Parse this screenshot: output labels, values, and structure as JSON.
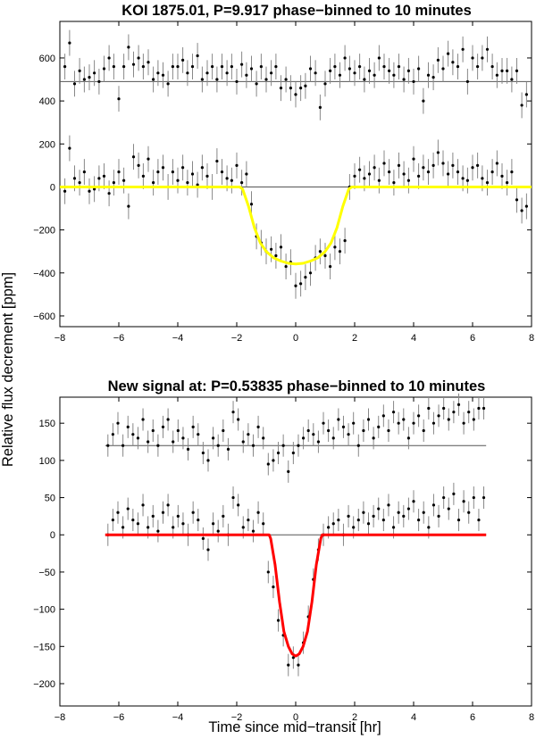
{
  "figure": {
    "ylabel": "Relative flux decrement [ppm]",
    "xlabel": "Time since mid−transit [hr]"
  },
  "chart_data": [
    {
      "type": "scatter",
      "title": "KOI 1875.01, P=9.917 phase−binned to 10 minutes",
      "xlabel": "",
      "ylabel": "",
      "xlim": [
        -8,
        8
      ],
      "ylim": [
        -650,
        770
      ],
      "xticks": [
        -8,
        -6,
        -4,
        -2,
        0,
        2,
        4,
        6,
        8
      ],
      "yticks": [
        -600,
        -400,
        -200,
        0,
        200,
        400,
        600
      ],
      "xtick_labels": [
        "−8",
        "−6",
        "−4",
        "−2",
        "0",
        "2",
        "4",
        "6",
        "8"
      ],
      "ytick_labels": [
        "−600",
        "−400",
        "−200",
        "0",
        "200",
        "400",
        "600"
      ],
      "grid": false,
      "reference_lines": [
        0,
        490
      ],
      "model": {
        "name": "",
        "color": "#ffff00",
        "x": [
          -8,
          -1.9,
          -1.8,
          -1.6,
          -1.4,
          -1.2,
          -1,
          -0.75,
          -0.5,
          -0.25,
          0,
          0.25,
          0.5,
          0.75,
          1,
          1.2,
          1.4,
          1.6,
          1.8,
          1.9,
          8
        ],
        "y": [
          0,
          0,
          -10,
          -90,
          -190,
          -260,
          -300,
          -330,
          -345,
          -355,
          -358,
          -355,
          -345,
          -330,
          -300,
          -260,
          -190,
          -90,
          -10,
          0,
          0
        ]
      },
      "series": [
        {
          "errorbar": 60,
          "x": [
            -7.83,
            -7.67,
            -7.5,
            -7.33,
            -7.17,
            -7,
            -6.83,
            -6.67,
            -6.5,
            -6.33,
            -6.17,
            -6,
            -5.83,
            -5.67,
            -5.5,
            -5.33,
            -5.17,
            -5,
            -4.83,
            -4.67,
            -4.5,
            -4.33,
            -4.17,
            -4,
            -3.83,
            -3.67,
            -3.5,
            -3.33,
            -3.17,
            -3,
            -2.83,
            -2.67,
            -2.5,
            -2.33,
            -2.17,
            -2,
            -1.83,
            -1.67,
            -1.5,
            -1.33,
            -1.17,
            -1,
            -0.83,
            -0.67,
            -0.5,
            -0.33,
            -0.17,
            0,
            0.17,
            0.33,
            0.5,
            0.67,
            0.83,
            1,
            1.17,
            1.33,
            1.5,
            1.67,
            1.83,
            2,
            2.17,
            2.33,
            2.5,
            2.67,
            2.83,
            3,
            3.17,
            3.33,
            3.5,
            3.67,
            3.83,
            4,
            4.17,
            4.33,
            4.5,
            4.67,
            4.83,
            5,
            5.17,
            5.33,
            5.5,
            5.67,
            5.83,
            6,
            6.17,
            6.33,
            6.5,
            6.67,
            6.83,
            7,
            7.17,
            7.33,
            7.5,
            7.67,
            7.83
          ],
          "y": [
            -20,
            180,
            40,
            20,
            70,
            -20,
            -10,
            40,
            50,
            -30,
            20,
            70,
            30,
            -90,
            140,
            100,
            50,
            130,
            20,
            70,
            90,
            0,
            70,
            30,
            90,
            20,
            60,
            10,
            90,
            50,
            0,
            120,
            70,
            40,
            30,
            100,
            20,
            60,
            -80,
            -230,
            -260,
            -300,
            -290,
            -320,
            -280,
            -370,
            -350,
            -460,
            -450,
            -420,
            -400,
            -330,
            -300,
            -320,
            -370,
            -280,
            -300,
            -250,
            0,
            50,
            80,
            40,
            60,
            90,
            30,
            110,
            70,
            20,
            100,
            60,
            30,
            130,
            50,
            90,
            70,
            100,
            160,
            110,
            60,
            100,
            70,
            40,
            30,
            90,
            100,
            40,
            20,
            70,
            110,
            50,
            20,
            70,
            -60,
            -110,
            -90
          ]
        },
        {
          "errorbar": 60,
          "x": [
            -7.83,
            -7.67,
            -7.5,
            -7.33,
            -7.17,
            -7,
            -6.83,
            -6.67,
            -6.5,
            -6.33,
            -6.17,
            -6,
            -5.83,
            -5.67,
            -5.5,
            -5.33,
            -5.17,
            -5,
            -4.83,
            -4.67,
            -4.5,
            -4.33,
            -4.17,
            -4,
            -3.83,
            -3.67,
            -3.5,
            -3.33,
            -3.17,
            -3,
            -2.83,
            -2.67,
            -2.5,
            -2.33,
            -2.17,
            -2,
            -1.83,
            -1.67,
            -1.5,
            -1.33,
            -1.17,
            -1,
            -0.83,
            -0.67,
            -0.5,
            -0.33,
            -0.17,
            0,
            0.17,
            0.33,
            0.5,
            0.67,
            0.83,
            1,
            1.17,
            1.33,
            1.5,
            1.67,
            1.83,
            2,
            2.17,
            2.33,
            2.5,
            2.67,
            2.83,
            3,
            3.17,
            3.33,
            3.5,
            3.67,
            3.83,
            4,
            4.17,
            4.33,
            4.5,
            4.67,
            4.83,
            5,
            5.17,
            5.33,
            5.5,
            5.67,
            5.83,
            6,
            6.17,
            6.33,
            6.5,
            6.67,
            6.83,
            7,
            7.17,
            7.33,
            7.5,
            7.67,
            7.83
          ],
          "y": [
            560,
            670,
            480,
            540,
            500,
            510,
            530,
            490,
            550,
            600,
            560,
            410,
            560,
            650,
            570,
            600,
            560,
            580,
            500,
            530,
            520,
            480,
            560,
            560,
            590,
            530,
            560,
            610,
            500,
            530,
            560,
            500,
            560,
            530,
            560,
            490,
            570,
            520,
            550,
            480,
            560,
            500,
            530,
            560,
            460,
            500,
            460,
            430,
            460,
            470,
            550,
            530,
            370,
            480,
            540,
            560,
            520,
            600,
            550,
            530,
            560,
            500,
            540,
            520,
            600,
            560,
            540,
            520,
            560,
            500,
            540,
            490,
            550,
            400,
            520,
            510,
            590,
            550,
            620,
            580,
            560,
            640,
            490,
            600,
            560,
            600,
            640,
            560,
            520,
            540,
            540,
            500,
            540,
            380,
            430
          ]
        }
      ]
    },
    {
      "type": "scatter",
      "title": "New signal at: P=0.53835 phase−binned to 10 minutes",
      "xlabel": "",
      "ylabel": "",
      "xlim": [
        -8,
        8
      ],
      "ylim": [
        -230,
        185
      ],
      "xticks": [
        -8,
        -6,
        -4,
        -2,
        0,
        2,
        4,
        6,
        8
      ],
      "yticks": [
        -200,
        -150,
        -100,
        -50,
        0,
        50,
        100,
        150
      ],
      "xtick_labels": [
        "−8",
        "−6",
        "−4",
        "−2",
        "0",
        "2",
        "4",
        "6",
        "8"
      ],
      "ytick_labels": [
        "−200",
        "−150",
        "−100",
        "−50",
        "0",
        "50",
        "100",
        "150"
      ],
      "grid": false,
      "reference_lines": [
        0,
        120
      ],
      "model": {
        "name": "",
        "color": "#ff0000",
        "x": [
          -6.46,
          -0.9,
          -0.85,
          -0.7,
          -0.55,
          -0.4,
          -0.25,
          -0.12,
          0,
          0.12,
          0.25,
          0.4,
          0.55,
          0.7,
          0.85,
          0.9,
          6.46
        ],
        "y": [
          0,
          0,
          -5,
          -40,
          -90,
          -130,
          -150,
          -160,
          -163,
          -160,
          -150,
          -130,
          -90,
          -40,
          -5,
          0,
          0
        ]
      },
      "series": [
        {
          "errorbar": 15,
          "x": [
            -6.37,
            -6.2,
            -6.03,
            -5.86,
            -5.69,
            -5.52,
            -5.35,
            -5.18,
            -5.01,
            -4.84,
            -4.67,
            -4.5,
            -4.33,
            -4.16,
            -3.99,
            -3.82,
            -3.65,
            -3.48,
            -3.31,
            -3.14,
            -2.97,
            -2.8,
            -2.63,
            -2.46,
            -2.29,
            -2.12,
            -1.95,
            -1.78,
            -1.61,
            -1.44,
            -1.27,
            -1.1,
            -0.93,
            -0.76,
            -0.59,
            -0.42,
            -0.25,
            -0.08,
            0.09,
            0.26,
            0.43,
            0.6,
            0.77,
            0.94,
            1.11,
            1.28,
            1.45,
            1.62,
            1.79,
            1.96,
            2.13,
            2.3,
            2.47,
            2.64,
            2.81,
            2.98,
            3.15,
            3.32,
            3.49,
            3.66,
            3.83,
            4,
            4.17,
            4.34,
            4.51,
            4.68,
            4.85,
            5.02,
            5.19,
            5.36,
            5.53,
            5.7,
            5.87,
            6.04,
            6.21,
            6.38
          ],
          "y": [
            0,
            20,
            30,
            10,
            35,
            20,
            15,
            40,
            10,
            25,
            5,
            30,
            40,
            10,
            25,
            15,
            0,
            30,
            20,
            -5,
            -20,
            15,
            5,
            25,
            0,
            50,
            40,
            10,
            20,
            5,
            30,
            15,
            -50,
            -70,
            -115,
            -135,
            -175,
            -165,
            -175,
            -145,
            -110,
            -60,
            -20,
            0,
            10,
            15,
            20,
            0,
            25,
            10,
            20,
            30,
            15,
            25,
            35,
            20,
            40,
            10,
            30,
            25,
            35,
            45,
            20,
            30,
            10,
            40,
            25,
            50,
            35,
            55,
            20,
            45,
            30,
            50,
            20,
            50
          ],
          "vertical_offset": 0
        },
        {
          "errorbar": 15,
          "x": [
            -6.37,
            -6.2,
            -6.03,
            -5.86,
            -5.69,
            -5.52,
            -5.35,
            -5.18,
            -5.01,
            -4.84,
            -4.67,
            -4.5,
            -4.33,
            -4.16,
            -3.99,
            -3.82,
            -3.65,
            -3.48,
            -3.31,
            -3.14,
            -2.97,
            -2.8,
            -2.63,
            -2.46,
            -2.29,
            -2.12,
            -1.95,
            -1.78,
            -1.61,
            -1.44,
            -1.27,
            -1.1,
            -0.93,
            -0.76,
            -0.59,
            -0.42,
            -0.25,
            -0.08,
            0.09,
            0.26,
            0.43,
            0.6,
            0.77,
            0.94,
            1.11,
            1.28,
            1.45,
            1.62,
            1.79,
            1.96,
            2.13,
            2.3,
            2.47,
            2.64,
            2.81,
            2.98,
            3.15,
            3.32,
            3.49,
            3.66,
            3.83,
            4,
            4.17,
            4.34,
            4.51,
            4.68,
            4.85,
            5.02,
            5.19,
            5.36,
            5.53,
            5.7,
            5.87,
            6.04,
            6.21,
            6.38
          ],
          "y": [
            120,
            135,
            150,
            120,
            145,
            135,
            130,
            155,
            125,
            140,
            120,
            145,
            155,
            125,
            140,
            130,
            115,
            145,
            135,
            110,
            100,
            130,
            120,
            140,
            115,
            165,
            155,
            125,
            135,
            120,
            145,
            130,
            95,
            100,
            110,
            120,
            85,
            110,
            120,
            130,
            140,
            135,
            125,
            150,
            140,
            130,
            155,
            145,
            135,
            150,
            120,
            140,
            155,
            130,
            145,
            160,
            140,
            165,
            150,
            155,
            130,
            150,
            160,
            140,
            170,
            150,
            160,
            170,
            155,
            165,
            175,
            150,
            165,
            155,
            170,
            170
          ]
        }
      ]
    }
  ]
}
